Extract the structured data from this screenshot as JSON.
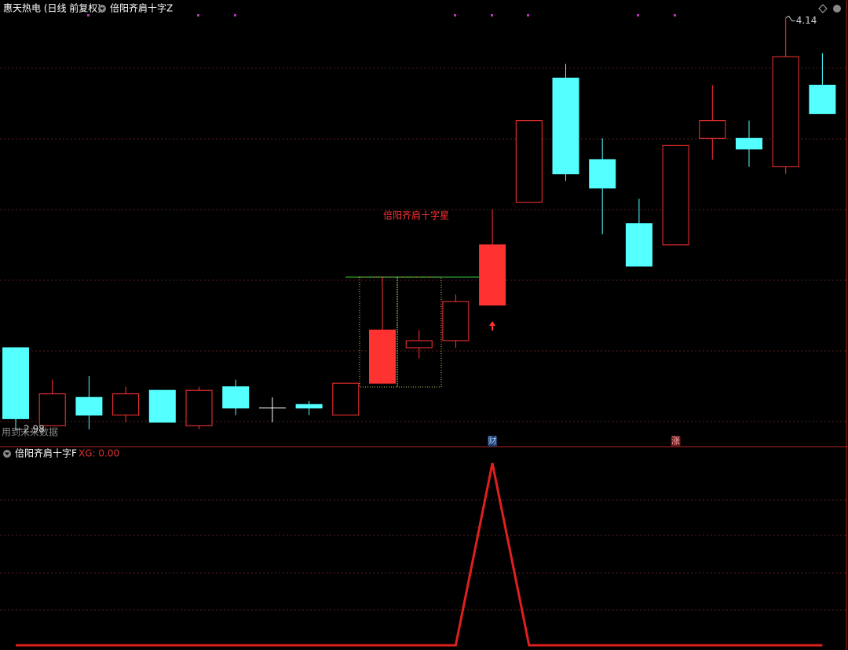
{
  "chart_data": [
    {
      "type": "candlestick",
      "title": "惠天热电 (日线 前复权)",
      "indicator": "倍阳齐肩十字Z",
      "annotation": "倍阳齐肩十字星",
      "note": "用到未来数据",
      "max_price": 4.14,
      "min_price": 2.98,
      "up_color": "#ff3232",
      "down_color": "#54ffff",
      "doji_color": "#ffffff",
      "highlight": [
        10,
        13
      ],
      "markers": [
        {
          "index": 13,
          "label": "财"
        },
        {
          "index": 18,
          "label": "涨"
        }
      ],
      "ylim": [
        2.94,
        4.19
      ],
      "candles": [
        {
          "open": 3.21,
          "close": 3.01,
          "high": 3.21,
          "low": 2.98
        },
        {
          "open": 2.99,
          "close": 3.08,
          "high": 3.12,
          "low": 2.99
        },
        {
          "open": 3.07,
          "close": 3.02,
          "high": 3.13,
          "low": 2.98
        },
        {
          "open": 3.02,
          "close": 3.08,
          "high": 3.1,
          "low": 3.0
        },
        {
          "open": 3.09,
          "close": 3.0,
          "high": 3.09,
          "low": 3.0
        },
        {
          "open": 2.99,
          "close": 3.09,
          "high": 3.1,
          "low": 2.98
        },
        {
          "open": 3.1,
          "close": 3.04,
          "high": 3.12,
          "low": 3.02
        },
        {
          "open": 3.04,
          "close": 3.04,
          "high": 3.07,
          "low": 3.0
        },
        {
          "open": 3.05,
          "close": 3.04,
          "high": 3.06,
          "low": 3.02
        },
        {
          "open": 3.02,
          "close": 3.11,
          "high": 3.11,
          "low": 3.02
        },
        {
          "open": 3.11,
          "close": 3.26,
          "high": 3.41,
          "low": 3.11
        },
        {
          "open": 3.21,
          "close": 3.23,
          "high": 3.26,
          "low": 3.18
        },
        {
          "open": 3.23,
          "close": 3.34,
          "high": 3.36,
          "low": 3.21
        },
        {
          "open": 3.33,
          "close": 3.5,
          "high": 3.6,
          "low": 3.33
        },
        {
          "open": 3.62,
          "close": 3.85,
          "high": 3.85,
          "low": 3.62
        },
        {
          "open": 3.97,
          "close": 3.7,
          "high": 4.01,
          "low": 3.68
        },
        {
          "open": 3.74,
          "close": 3.66,
          "high": 3.8,
          "low": 3.53
        },
        {
          "open": 3.56,
          "close": 3.44,
          "high": 3.63,
          "low": 3.44
        },
        {
          "open": 3.5,
          "close": 3.78,
          "high": 3.78,
          "low": 3.5
        },
        {
          "open": 3.8,
          "close": 3.85,
          "high": 3.95,
          "low": 3.74
        },
        {
          "open": 3.8,
          "close": 3.77,
          "high": 3.85,
          "low": 3.72
        },
        {
          "open": 3.72,
          "close": 4.03,
          "high": 4.14,
          "low": 3.7
        },
        {
          "open": 3.95,
          "close": 3.87,
          "high": 4.04,
          "low": 3.87
        }
      ]
    },
    {
      "type": "line",
      "title": "倍阳齐肩十字F",
      "legend": "XG: 0.00",
      "color": "#e0201e",
      "ylim": [
        0,
        1
      ],
      "values": [
        0,
        0,
        0,
        0,
        0,
        0,
        0,
        0,
        0,
        0,
        0,
        0,
        0,
        1,
        0,
        0,
        0,
        0,
        0,
        0,
        0,
        0,
        0
      ]
    }
  ]
}
